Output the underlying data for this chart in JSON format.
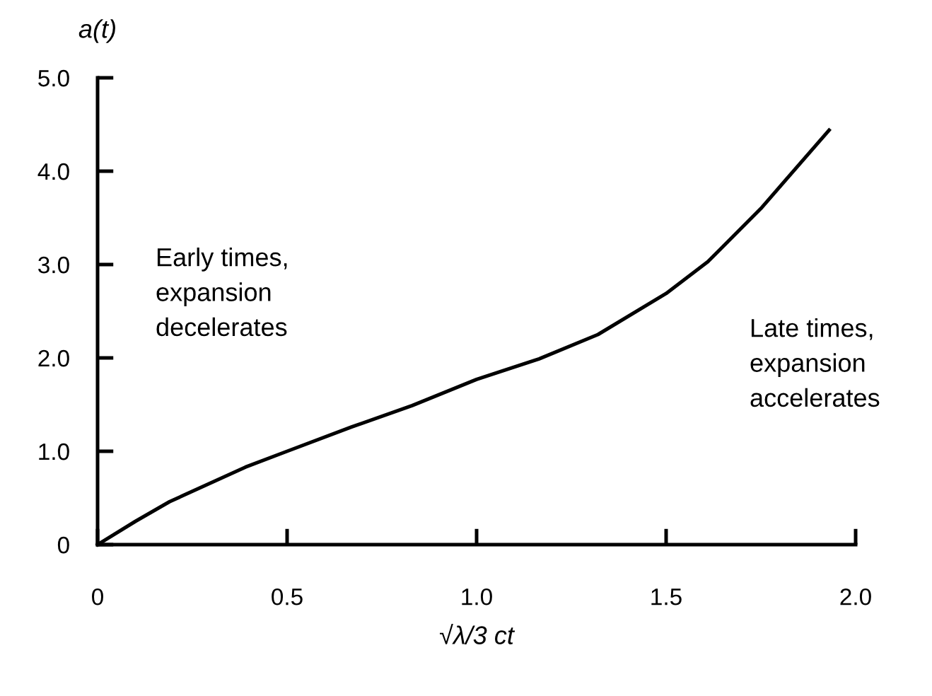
{
  "chart_data": {
    "type": "line",
    "ylabel": "a(t)",
    "xlabel": "√λ/3 ct",
    "annotations": [
      "Early times,\nexpansion\ndecelerates",
      "Late times,\nexpansion\naccelerates"
    ],
    "series": [
      {
        "color": "#000000",
        "x": [
          0,
          0.1,
          0.19,
          0.39,
          0.5,
          0.67,
          0.83,
          1.0,
          1.165,
          1.32,
          1.5,
          1.61,
          1.75,
          1.93
        ],
        "values": [
          0,
          0.25,
          0.46,
          0.83,
          1.0,
          1.26,
          1.49,
          1.77,
          1.99,
          2.25,
          2.69,
          3.03,
          3.6,
          4.44
        ]
      }
    ],
    "xlim": [
      0,
      2.0
    ],
    "ylim": [
      0,
      5.0
    ],
    "xticks": [
      0,
      0.5,
      {
        "value": 1.0,
        "label": "1.0"
      },
      1.5,
      {
        "value": 2.0,
        "label": "2.0"
      }
    ],
    "yticks": [
      0,
      {
        "value": 1.0,
        "label": "1.0"
      },
      {
        "value": 2.0,
        "label": "2.0"
      },
      {
        "value": 3.0,
        "label": "3.0"
      },
      {
        "value": 4.0,
        "label": "4.0"
      },
      {
        "value": 5.0,
        "label": "5.0"
      }
    ],
    "grid": false,
    "legend": false,
    "marker": "none",
    "line_style": "solid"
  }
}
